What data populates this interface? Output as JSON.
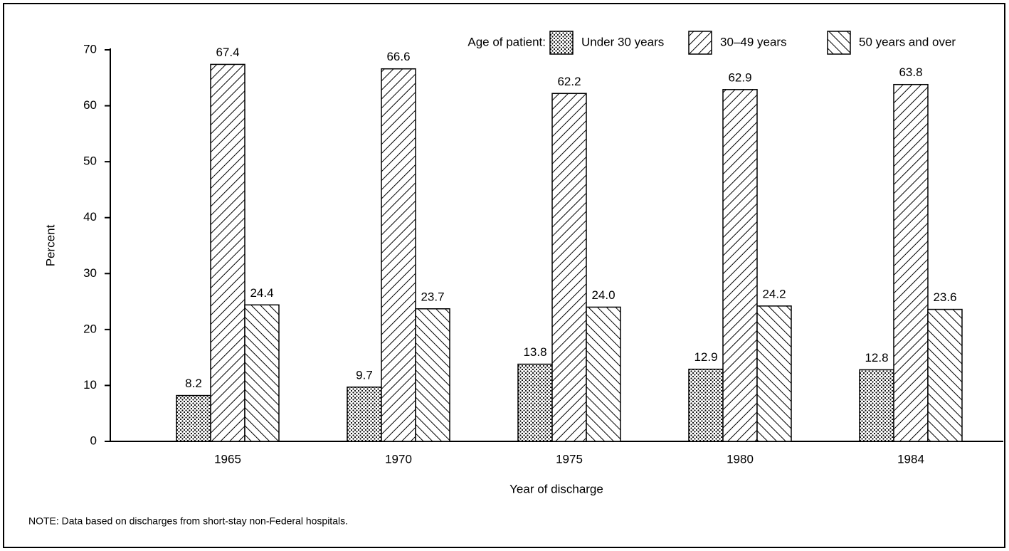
{
  "chart_data": {
    "type": "bar",
    "y_label": "Percent",
    "x_label": "Year of discharge",
    "legend_title": "Age of patient:",
    "legend": "top-right",
    "note": "NOTE:  Data based on discharges from short-stay non-Federal hospitals.",
    "categories": [
      "1965",
      "1970",
      "1975",
      "1980",
      "1984"
    ],
    "series": [
      {
        "name": "Under 30 years",
        "color": "#000000",
        "pattern": "dots",
        "values": [
          8.2,
          9.7,
          13.8,
          12.9,
          12.8
        ]
      },
      {
        "name": "30–49 years",
        "color": "#000000",
        "pattern": "backslash",
        "values": [
          67.4,
          66.6,
          62.2,
          62.9,
          63.8
        ]
      },
      {
        "name": "50 years and over",
        "color": "#000000",
        "pattern": "slash",
        "values": [
          24.4,
          23.7,
          24.0,
          24.2,
          23.6
        ],
        "value_labels": [
          "24.4",
          "23.7",
          "24.0",
          "24.2",
          "23.6"
        ]
      }
    ],
    "ylim": [
      0,
      70
    ],
    "yticks": [
      0,
      10,
      20,
      30,
      40,
      50,
      60,
      70
    ],
    "grid": false
  }
}
